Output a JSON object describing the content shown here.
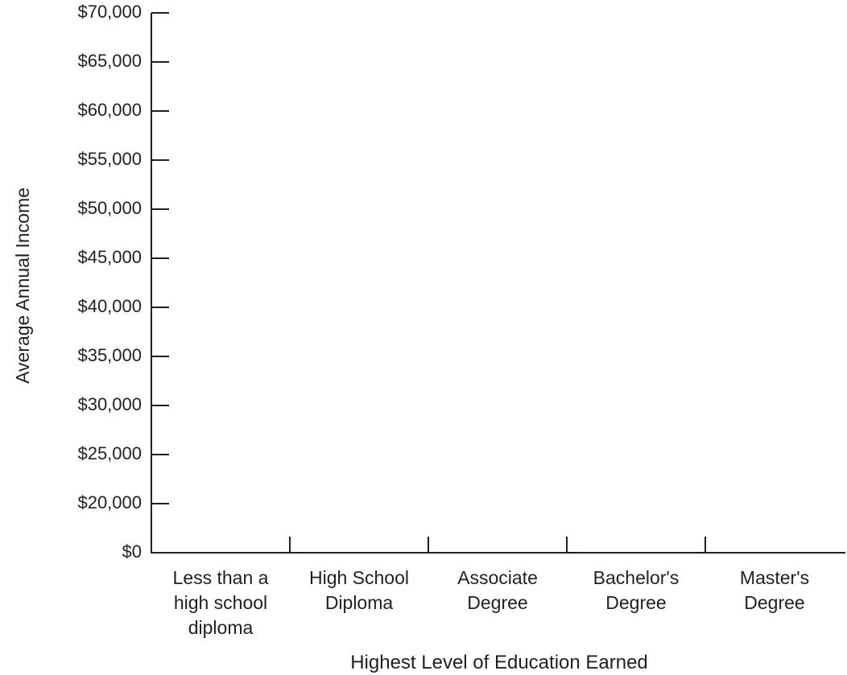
{
  "chart_data": {
    "type": "bar",
    "x_label": "Highest Level of Education Earned",
    "y_label": "Average Annual Income",
    "categories": [
      "Less than a high school diploma",
      "High School Diploma",
      "Associate Degree",
      "Bachelor's Degree",
      "Master's Degree"
    ],
    "ylim": [
      0,
      70000
    ],
    "yticks": [
      {
        "value": 0,
        "label": "$0"
      },
      {
        "value": 20000,
        "label": "$20,000"
      },
      {
        "value": 25000,
        "label": "$25,000"
      },
      {
        "value": 30000,
        "label": "$30,000"
      },
      {
        "value": 35000,
        "label": "$35,000"
      },
      {
        "value": 40000,
        "label": "$40,000"
      },
      {
        "value": 45000,
        "label": "$45,000"
      },
      {
        "value": 50000,
        "label": "$50,000"
      },
      {
        "value": 55000,
        "label": "$55,000"
      },
      {
        "value": 60000,
        "label": "$60,000"
      },
      {
        "value": 65000,
        "label": "$65,000"
      },
      {
        "value": 70000,
        "label": "$70,000"
      }
    ],
    "color": "#231f20"
  }
}
